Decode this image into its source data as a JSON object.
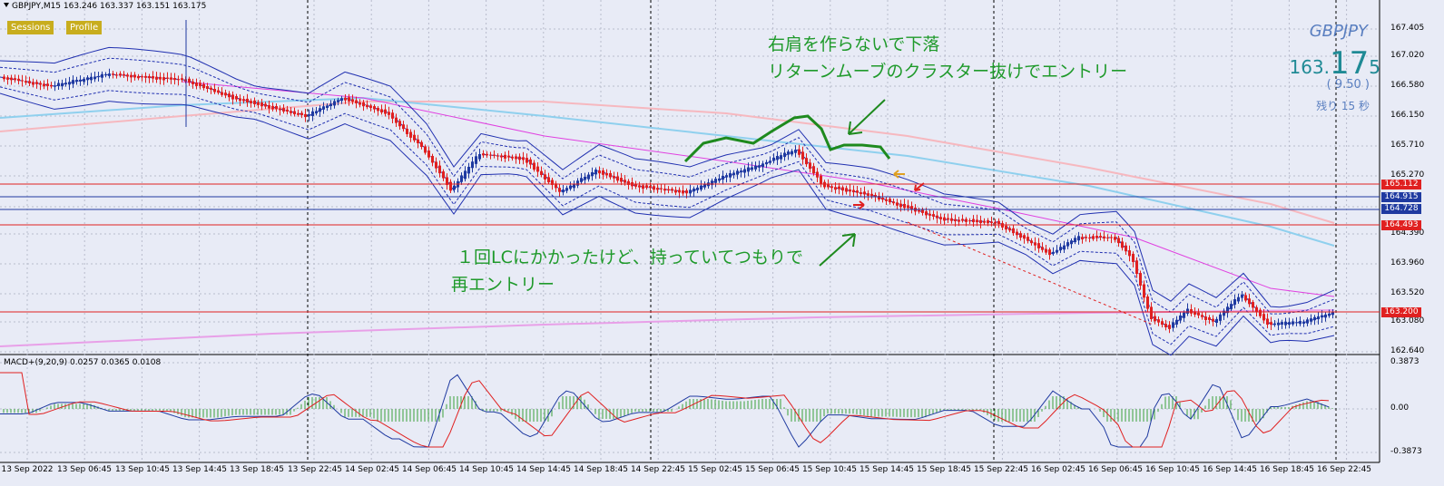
{
  "header": {
    "text": "GBPJPY,M15  163.246 163.337 163.151 163.175"
  },
  "buttons": {
    "sessions": "Sessions",
    "profile": "Profile"
  },
  "symbol_panel": {
    "symbol": "GBPJPY",
    "price_main": "163.",
    "price_big": "17",
    "price_small": "5",
    "change": "( 9.50 )",
    "remaining": "残り 15 秒"
  },
  "annotations": {
    "top_line1": "右肩を作らないで下落",
    "top_line2": "リターンムーブのクラスター抜けでエントリー",
    "bottom_line1": "１回LCにかかったけど、持っていてつもりで",
    "bottom_line2": "再エントリー"
  },
  "macd": {
    "label": "MACD+(9,20,9) 0.0257 0.0365 0.0108",
    "ticks": [
      "0.3873",
      "0.00",
      "-0.3873"
    ]
  },
  "y_axis": {
    "ticks": [
      "167.405",
      "167.020",
      "166.580",
      "166.150",
      "165.710",
      "165.270",
      "164.390",
      "163.960",
      "163.520",
      "163.080",
      "162.640"
    ]
  },
  "price_tags": [
    {
      "value": "165.112",
      "color": "#e02020"
    },
    {
      "value": "164.915",
      "color": "#1f3aa0"
    },
    {
      "value": "164.728",
      "color": "#1f3aa0"
    },
    {
      "value": "164.493",
      "color": "#e02020"
    },
    {
      "value": "163.200",
      "color": "#e02020"
    }
  ],
  "x_axis": {
    "labels": [
      "13 Sep 2022",
      "13 Sep 06:45",
      "13 Sep 10:45",
      "13 Sep 14:45",
      "13 Sep 18:45",
      "13 Sep 22:45",
      "14 Sep 02:45",
      "14 Sep 06:45",
      "14 Sep 10:45",
      "14 Sep 14:45",
      "14 Sep 18:45",
      "14 Sep 22:45",
      "15 Sep 02:45",
      "15 Sep 06:45",
      "15 Sep 10:45",
      "15 Sep 14:45",
      "15 Sep 18:45",
      "15 Sep 22:45",
      "16 Sep 02:45",
      "16 Sep 06:45",
      "16 Sep 10:45",
      "16 Sep 14:45",
      "16 Sep 18:45",
      "16 Sep 22:45"
    ]
  },
  "colors": {
    "bull": "#1f3aa0",
    "bear": "#e02020",
    "grid": "#b8bccc",
    "background": "#e8ebf6"
  }
}
